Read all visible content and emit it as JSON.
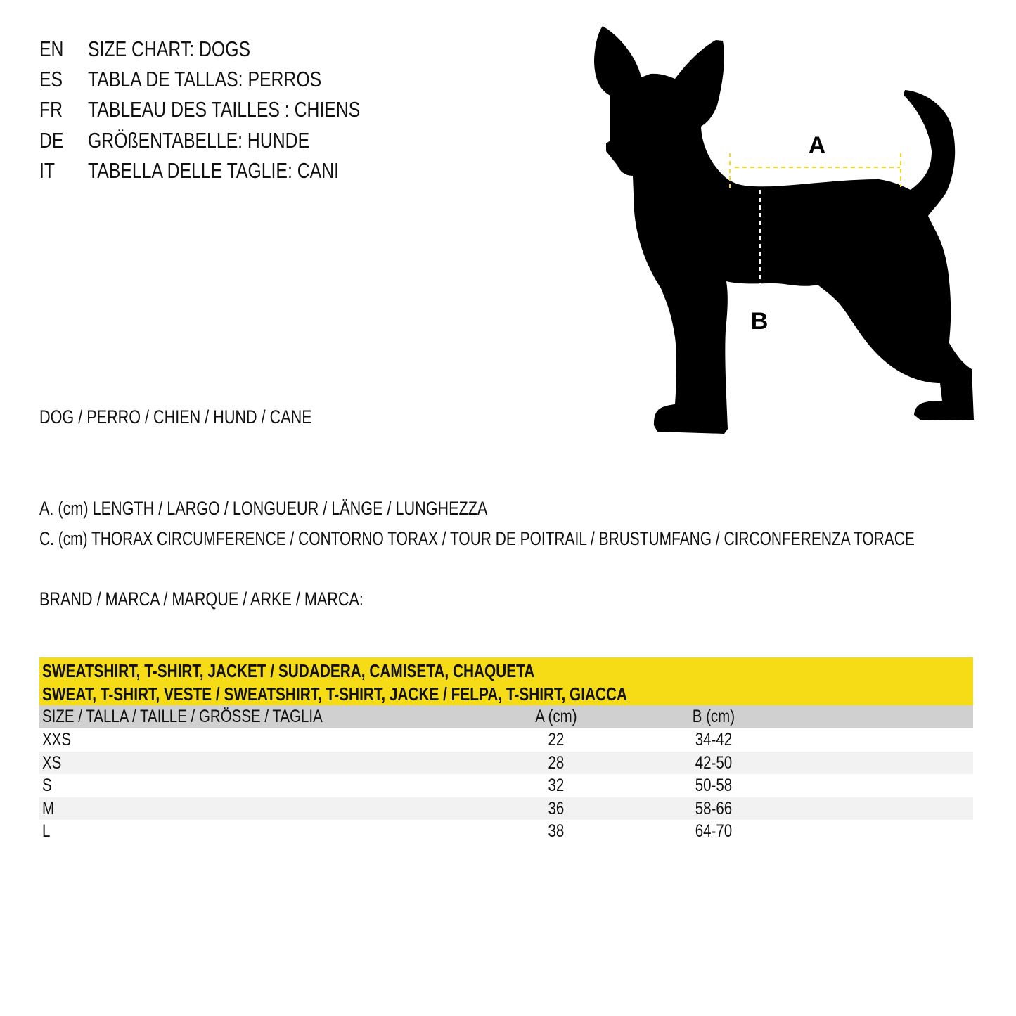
{
  "titles": [
    {
      "code": "EN",
      "text": "SIZE CHART: DOGS"
    },
    {
      "code": "ES",
      "text": "TABLA DE TALLAS: PERROS"
    },
    {
      "code": "FR",
      "text": "TABLEAU DES TAILLES : CHIENS"
    },
    {
      "code": "DE",
      "text": "GRÖßENTABELLE: HUNDE"
    },
    {
      "code": "IT",
      "text": "TABELLA DELLE TAGLIE: CANI"
    }
  ],
  "animal_label": "DOG / PERRO / CHIEN / HUND / CANE",
  "legend": {
    "a": "A. (cm) LENGTH / LARGO / LONGUEUR / LÄNGE / LUNGHEZZA",
    "c": "C. (cm) THORAX CIRCUMFERENCE / CONTORNO TORAX / TOUR DE POITRAIL / BRUSTUMFANG / CIRCONFERENZA TORACE"
  },
  "brand_label": "BRAND / MARCA / MARQUE / ARKE / MARCA:",
  "diagram": {
    "label_a": "A",
    "label_b": "B",
    "silhouette_color": "#000000",
    "a_line_color": "#f6dc17",
    "b_line_color": "#ffffff"
  },
  "table": {
    "title_line1": "SWEATSHIRT, T-SHIRT, JACKET / SUDADERA, CAMISETA, CHAQUETA",
    "title_line2": "SWEAT, T-SHIRT, VESTE / SWEATSHIRT, T-SHIRT, JACKE / FELPA, T-SHIRT, GIACCA",
    "headers": [
      "SIZE / TALLA / TAILLE / GRÖSSE / TAGLIA",
      "A (cm)",
      "B (cm)"
    ],
    "rows": [
      [
        "XXS",
        "22",
        "34-42"
      ],
      [
        "XS",
        "28",
        "42-50"
      ],
      [
        "S",
        "32",
        "50-58"
      ],
      [
        "M",
        "36",
        "58-66"
      ],
      [
        "L",
        "38",
        "64-70"
      ]
    ],
    "header_color": "#f6dc17",
    "subheader_color": "#d0d0d1"
  }
}
